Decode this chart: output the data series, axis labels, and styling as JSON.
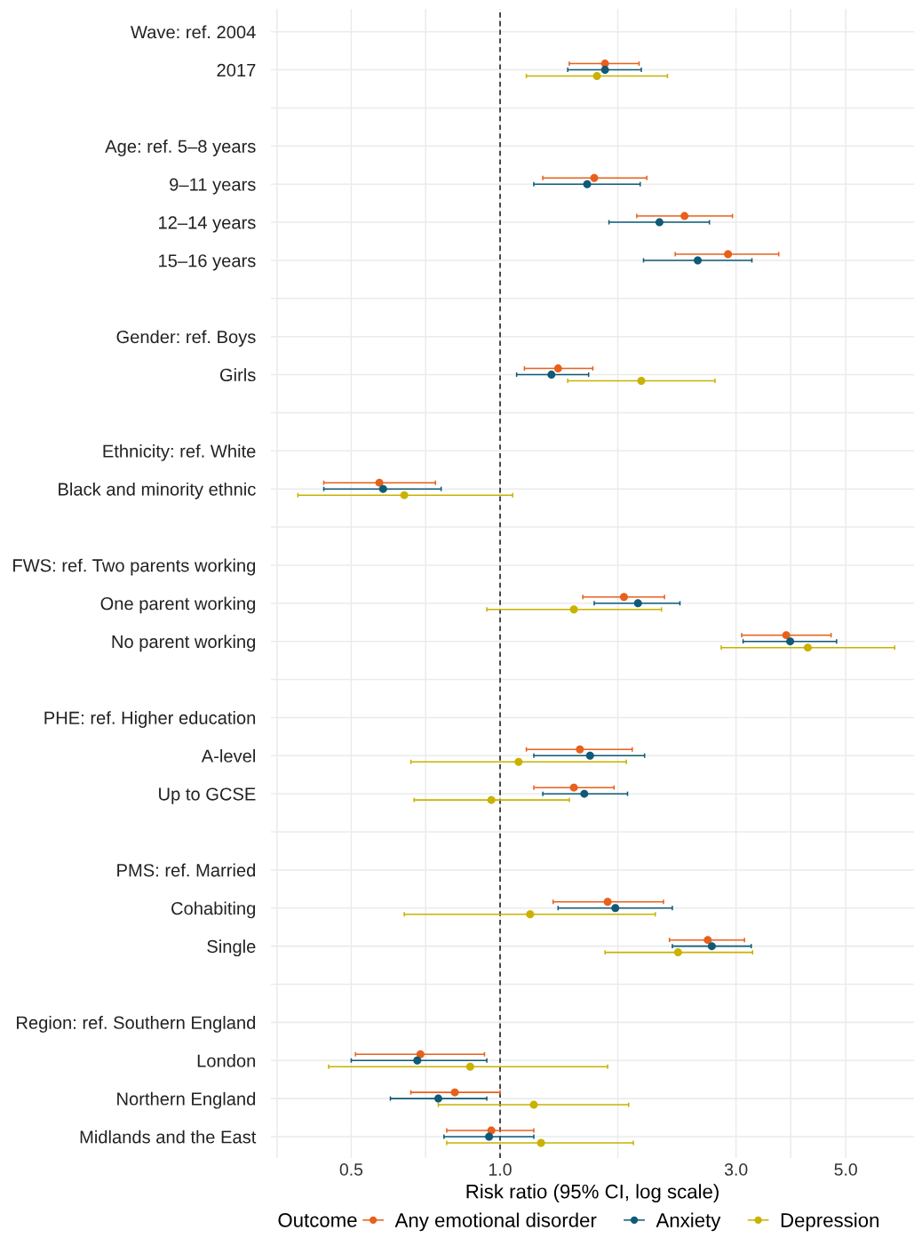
{
  "chart_data": {
    "type": "scatter",
    "orientation": "horizontal",
    "xlabel": "Risk ratio (95% CI, log scale)",
    "legend_title": "Outcome",
    "legend": "bottom",
    "log": "x",
    "grid": true,
    "marker": "circle",
    "categories": [
      "Wave: ref. 2004",
      "2017",
      null,
      "Age: ref. 5–8 years",
      "9–11 years",
      "12–14 years",
      "15–16 years",
      null,
      "Gender: ref. Boys",
      "Girls",
      null,
      "Ethnicity: ref. White",
      "Black and minority ethnic",
      null,
      "FWS: ref. Two parents working",
      "One parent working",
      "No parent working",
      null,
      "PHE: ref. Higher education",
      "A-level",
      "Up to GCSE",
      null,
      "PMS: ref. Married",
      "Cohabiting",
      "Single",
      null,
      "Region: ref. Southern England",
      "London",
      "Northern England",
      "Midlands and the East"
    ],
    "xlim": [
      0.344,
      6.87
    ],
    "xticks": [
      {
        "value": 0.354,
        "label": null
      },
      0.5,
      {
        "value": 0.707,
        "label": null
      },
      {
        "value": 1,
        "label": "1.0"
      },
      {
        "value": 1.73,
        "label": null
      },
      {
        "value": 3,
        "label": "3.0"
      },
      {
        "value": 3.87,
        "label": null
      },
      {
        "value": 5,
        "label": "5.0"
      }
    ],
    "ref_lines": [
      {
        "axis": "x",
        "value": 1,
        "color": "#000000",
        "line_style": "dashed"
      }
    ],
    "series": [
      {
        "name": "Any emotional disorder",
        "color": "#e8601c",
        "values": [
          null,
          1.63,
          null,
          null,
          1.55,
          2.36,
          2.89,
          null,
          null,
          1.31,
          null,
          null,
          0.57,
          null,
          null,
          1.78,
          3.79,
          null,
          null,
          1.45,
          1.41,
          null,
          null,
          1.65,
          2.63,
          null,
          null,
          0.69,
          0.81,
          0.96
        ],
        "errors": [
          null,
          [
            1.38,
            1.91
          ],
          null,
          null,
          [
            1.22,
            1.98
          ],
          [
            1.89,
            2.95
          ],
          [
            2.26,
            3.66
          ],
          null,
          null,
          [
            1.12,
            1.54
          ],
          null,
          null,
          [
            0.44,
            0.74
          ],
          null,
          null,
          [
            1.47,
            2.15
          ],
          [
            3.08,
            4.67
          ],
          null,
          null,
          [
            1.13,
            1.85
          ],
          [
            1.17,
            1.7
          ],
          null,
          null,
          [
            1.28,
            2.14
          ],
          [
            2.2,
            3.12
          ],
          null,
          null,
          [
            0.51,
            0.93
          ],
          [
            0.66,
            1.0
          ],
          [
            0.78,
            1.17
          ]
        ]
      },
      {
        "name": "Anxiety",
        "color": "#0f5a78",
        "values": [
          null,
          1.63,
          null,
          null,
          1.5,
          2.1,
          2.51,
          null,
          null,
          1.27,
          null,
          null,
          0.58,
          null,
          null,
          1.9,
          3.86,
          null,
          null,
          1.52,
          1.48,
          null,
          null,
          1.71,
          2.68,
          null,
          null,
          0.68,
          0.75,
          0.95
        ],
        "errors": [
          null,
          [
            1.37,
            1.93
          ],
          null,
          null,
          [
            1.17,
            1.92
          ],
          [
            1.66,
            2.65
          ],
          [
            1.95,
            3.23
          ],
          null,
          null,
          [
            1.08,
            1.51
          ],
          null,
          null,
          [
            0.44,
            0.76
          ],
          null,
          null,
          [
            1.55,
            2.31
          ],
          [
            3.1,
            4.79
          ],
          null,
          null,
          [
            1.17,
            1.96
          ],
          [
            1.22,
            1.81
          ],
          null,
          null,
          [
            1.31,
            2.23
          ],
          [
            2.23,
            3.22
          ],
          null,
          null,
          [
            0.5,
            0.94
          ],
          [
            0.6,
            0.94
          ],
          [
            0.77,
            1.17
          ]
        ]
      },
      {
        "name": "Depression",
        "color": "#c9b200",
        "values": [
          null,
          1.57,
          null,
          null,
          null,
          null,
          null,
          null,
          null,
          1.93,
          null,
          null,
          0.64,
          null,
          null,
          1.41,
          4.19,
          null,
          null,
          1.09,
          0.96,
          null,
          null,
          1.15,
          2.29,
          null,
          null,
          0.87,
          1.17,
          1.21
        ],
        "errors": [
          null,
          [
            1.13,
            2.18
          ],
          null,
          null,
          null,
          null,
          null,
          null,
          null,
          [
            1.37,
            2.72
          ],
          null,
          null,
          [
            0.39,
            1.06
          ],
          null,
          null,
          [
            0.94,
            2.12
          ],
          [
            2.8,
            6.28
          ],
          null,
          null,
          [
            0.66,
            1.8
          ],
          [
            0.67,
            1.38
          ],
          null,
          null,
          [
            0.64,
            2.06
          ],
          [
            1.63,
            3.24
          ],
          null,
          null,
          [
            0.45,
            1.65
          ],
          [
            0.75,
            1.82
          ],
          [
            0.78,
            1.86
          ]
        ]
      }
    ]
  }
}
